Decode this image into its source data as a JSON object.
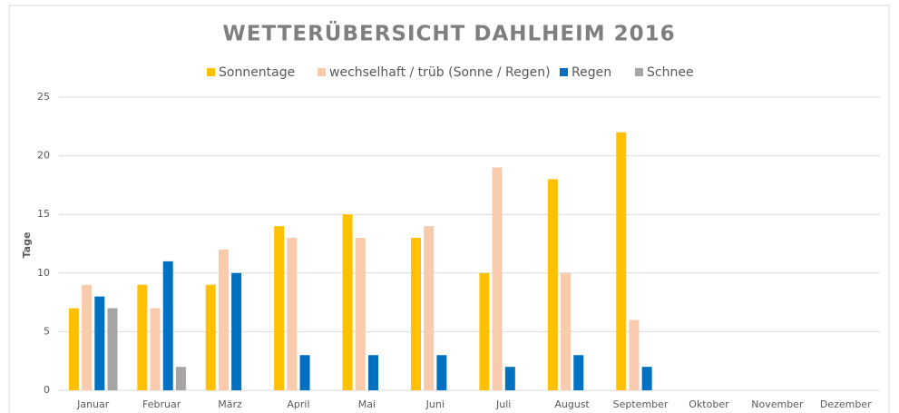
{
  "chart_data": {
    "type": "bar",
    "title": "WETTERÜBERSICHT DAHLHEIM 2016",
    "y_label": "Tage",
    "categories": [
      "Januar",
      "Februar",
      "März",
      "April",
      "Mai",
      "Juni",
      "Juli",
      "August",
      "September",
      "Oktober",
      "November",
      "Dezember"
    ],
    "series": [
      {
        "name": "Sonnentage",
        "color": "#ffc000",
        "values": [
          7,
          9,
          9,
          14,
          15,
          13,
          10,
          18,
          22,
          null,
          null,
          null
        ]
      },
      {
        "name": "wechselhaft / trüb (Sonne / Regen)",
        "color": "#f8cbad",
        "values": [
          9,
          7,
          12,
          13,
          13,
          14,
          19,
          10,
          6,
          null,
          null,
          null
        ]
      },
      {
        "name": "Regen",
        "color": "#0070c0",
        "values": [
          8,
          11,
          10,
          3,
          3,
          3,
          2,
          3,
          2,
          null,
          null,
          null
        ]
      },
      {
        "name": "Schnee",
        "color": "#a5a5a5",
        "values": [
          7,
          2,
          0,
          0,
          0,
          0,
          0,
          0,
          0,
          null,
          null,
          null
        ]
      }
    ],
    "ylim": [
      0,
      25
    ],
    "yticks": [
      0,
      5,
      10,
      15,
      20,
      25
    ],
    "grid": true,
    "legend": "top"
  }
}
